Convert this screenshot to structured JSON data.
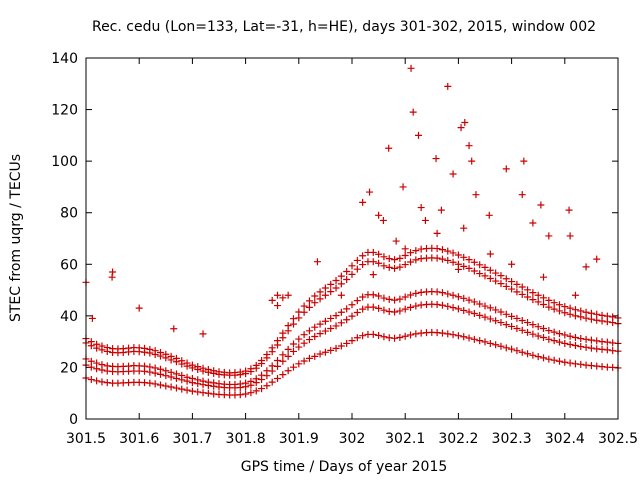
{
  "chart_data": {
    "type": "scatter",
    "title": "Rec. cedu (Lon=133, Lat=-31, h=HE), days 301-302, 2015, window 002",
    "xlabel": "GPS time / Days of year 2015",
    "ylabel": "STEC from uqrg / TECUs",
    "xlim": [
      301.5,
      302.5
    ],
    "ylim": [
      0,
      140
    ],
    "xticks": [
      "301.5",
      "301.6",
      "301.7",
      "301.8",
      "301.9",
      "302",
      "302.1",
      "302.2",
      "302.3",
      "302.4",
      "302.5"
    ],
    "yticks": [
      "0",
      "20",
      "40",
      "60",
      "80",
      "100",
      "120",
      "140"
    ],
    "marker": "+",
    "color": "#cc0000",
    "grid": false,
    "series": [
      {
        "name": "STEC",
        "x": [
          301.5,
          301.51,
          301.52,
          301.53,
          301.54,
          301.55,
          301.56,
          301.57,
          301.58,
          301.59,
          301.6,
          301.61,
          301.62,
          301.63,
          301.64,
          301.65,
          301.66,
          301.67,
          301.68,
          301.69,
          301.7,
          301.71,
          301.72,
          301.73,
          301.74,
          301.75,
          301.76,
          301.77,
          301.78,
          301.79,
          301.8,
          301.81,
          301.82,
          301.83,
          301.84,
          301.85,
          301.86,
          301.87,
          301.88,
          301.89,
          301.9,
          301.91,
          301.92,
          301.93,
          301.94,
          301.95,
          301.96,
          301.97,
          301.98,
          301.99,
          302.0,
          302.01,
          302.02,
          302.03,
          302.04,
          302.05,
          302.06,
          302.07,
          302.08,
          302.09,
          302.1,
          302.11,
          302.12,
          302.13,
          302.14,
          302.15,
          302.16,
          302.17,
          302.18,
          302.19,
          302.2,
          302.21,
          302.22,
          302.23,
          302.24,
          302.25,
          302.26,
          302.27,
          302.28,
          302.29,
          302.3,
          302.31,
          302.32,
          302.33,
          302.34,
          302.35,
          302.36,
          302.37,
          302.38,
          302.39,
          302.4,
          302.41,
          302.42,
          302.43,
          302.44,
          302.45,
          302.46,
          302.47,
          302.48,
          302.49,
          302.5,
          301.5,
          301.51,
          301.52,
          301.53,
          301.54,
          301.55,
          301.56,
          301.57,
          301.58,
          301.59,
          301.6,
          301.61,
          301.62,
          301.63,
          301.64,
          301.65,
          301.66,
          301.67,
          301.68,
          301.69,
          301.7,
          301.71,
          301.72,
          301.73,
          301.74,
          301.75,
          301.76,
          301.77,
          301.78,
          301.79,
          301.8,
          301.81,
          301.82,
          301.83,
          301.84,
          301.85,
          301.86,
          301.87,
          301.88,
          301.89,
          301.9,
          301.91,
          301.92,
          301.93,
          301.94,
          301.95,
          301.96,
          301.97,
          301.98,
          301.99,
          302.0,
          302.01,
          302.02,
          302.03,
          302.04,
          302.05,
          302.06,
          302.07,
          302.08,
          302.09,
          302.1,
          302.11,
          302.12,
          302.13,
          302.14,
          302.15,
          302.16,
          302.17,
          302.18,
          302.19,
          302.2,
          302.21,
          302.22,
          302.23,
          302.24,
          302.25,
          302.26,
          302.27,
          302.28,
          302.29,
          302.3,
          302.31,
          302.32,
          302.33,
          302.34,
          302.35,
          302.36,
          302.37,
          302.38,
          302.39,
          302.4,
          302.41,
          302.42,
          302.43,
          302.44,
          302.45,
          302.46,
          302.47,
          302.48,
          302.49,
          302.5,
          301.5,
          301.51,
          301.52,
          301.53,
          301.54,
          301.55,
          301.56,
          301.57,
          301.58,
          301.59,
          301.6,
          301.61,
          301.62,
          301.63,
          301.64,
          301.65,
          301.66,
          301.67,
          301.68,
          301.69,
          301.7,
          301.71,
          301.72,
          301.73,
          301.74,
          301.75,
          301.76,
          301.77,
          301.78,
          301.79,
          301.8,
          301.81,
          301.82,
          301.83,
          301.84,
          301.85,
          301.86,
          301.87,
          301.88,
          301.89,
          301.9,
          301.91,
          301.92,
          301.93,
          301.94,
          301.95,
          301.96,
          301.97,
          301.98,
          301.99,
          302.0,
          302.01,
          302.02,
          302.03,
          302.04,
          302.05,
          302.06,
          302.07,
          302.08,
          302.09,
          302.1,
          302.11,
          302.12,
          302.13,
          302.14,
          302.15,
          302.16,
          302.17,
          302.18,
          302.19,
          302.2,
          302.21,
          302.22,
          302.23,
          302.24,
          302.25,
          302.26,
          302.27,
          302.28,
          302.29,
          302.3,
          302.31,
          302.32,
          302.33,
          302.34,
          302.35,
          302.36,
          302.37,
          302.38,
          302.39,
          302.4,
          302.41,
          302.42,
          302.43,
          302.44,
          302.45,
          302.46,
          302.47,
          302.48,
          302.49,
          302.5,
          301.5,
          301.51,
          301.52,
          301.53,
          301.54,
          301.55,
          301.56,
          301.57,
          301.58,
          301.59,
          301.6,
          301.61,
          301.62,
          301.63,
          301.64,
          301.65,
          301.66,
          301.67,
          301.68,
          301.69,
          301.7,
          301.71,
          301.72,
          301.73,
          301.74,
          301.75,
          301.76,
          301.77,
          301.78,
          301.79,
          301.8,
          301.81,
          301.82,
          301.83,
          301.84,
          301.85,
          301.86,
          301.87,
          301.88,
          301.89,
          301.9,
          301.91,
          301.92,
          301.93,
          301.94,
          301.95,
          301.96,
          301.97,
          301.98,
          301.99,
          302.0,
          302.01,
          302.02,
          302.03,
          302.04,
          302.05,
          302.06,
          302.07,
          302.08,
          302.09,
          302.1,
          302.11,
          302.12,
          302.13,
          302.14,
          302.15,
          302.16,
          302.17,
          302.18,
          302.19,
          302.2,
          302.21,
          302.22,
          302.23,
          302.24,
          302.25,
          302.26,
          302.27,
          302.28,
          302.29,
          302.3,
          302.31,
          302.32,
          302.33,
          302.34,
          302.35,
          302.36,
          302.37,
          302.38,
          302.39,
          302.4,
          302.41,
          302.42,
          302.43,
          302.44,
          302.45,
          302.46,
          302.47,
          302.48,
          302.49,
          302.5,
          301.5,
          301.51,
          301.52,
          301.53,
          301.54,
          301.55,
          301.56,
          301.57,
          301.58,
          301.59,
          301.6,
          301.61,
          301.62,
          301.63,
          301.64,
          301.65,
          301.66,
          301.67,
          301.68,
          301.69,
          301.7,
          301.71,
          301.72,
          301.73,
          301.74,
          301.75,
          301.76,
          301.77,
          301.78,
          301.79,
          301.8,
          301.81,
          301.82,
          301.83,
          301.84,
          301.85,
          301.86,
          301.87,
          301.88,
          301.89,
          301.9,
          301.91,
          301.92,
          301.93,
          301.94,
          301.95,
          301.96,
          301.97,
          301.98,
          301.99,
          302.0,
          302.01,
          302.02,
          302.03,
          302.04,
          302.05,
          302.06,
          302.07,
          302.08,
          302.09,
          302.1,
          302.11,
          302.12,
          302.13,
          302.14,
          302.15,
          302.16,
          302.17,
          302.18,
          302.19,
          302.2,
          302.21,
          302.22,
          302.23,
          302.24,
          302.25,
          302.26,
          302.27,
          302.28,
          302.29,
          302.3,
          302.31,
          302.32,
          302.33,
          302.34,
          302.35,
          302.36,
          302.37,
          302.38,
          302.39,
          302.4,
          302.41,
          302.42,
          302.43,
          302.44,
          302.45,
          302.46,
          302.47,
          302.48,
          302.49,
          302.5,
          301.5,
          301.55,
          301.549,
          301.512,
          301.6,
          301.665,
          301.72,
          301.85,
          301.86,
          301.86,
          301.87,
          301.88,
          301.935,
          301.98,
          302.02,
          302.033,
          302.05,
          302.059,
          302.069,
          302.083,
          302.096,
          302.111,
          302.115,
          302.125,
          302.13,
          302.138,
          302.158,
          302.168,
          302.18,
          302.19,
          302.205,
          302.21,
          302.212,
          302.22,
          302.225,
          302.233,
          302.258,
          302.29,
          302.32,
          302.323,
          302.34,
          302.355,
          302.37,
          302.408,
          302.41,
          302.44,
          302.46,
          302.04,
          302.1,
          302.16,
          302.2,
          302.26,
          302.3,
          302.36,
          302.42
        ],
        "y": [
          15.9,
          15.3,
          14.8,
          14.4,
          14.1,
          13.9,
          13.9,
          14.0,
          14.1,
          14.2,
          14.2,
          14.1,
          13.9,
          13.6,
          13.2,
          12.8,
          12.4,
          12.0,
          11.6,
          11.2,
          10.8,
          10.5,
          10.2,
          10.0,
          9.7,
          9.5,
          9.4,
          9.3,
          9.3,
          9.4,
          9.7,
          10.2,
          10.9,
          11.8,
          12.9,
          14.3,
          15.7,
          17.2,
          18.7,
          20.1,
          21.4,
          22.5,
          23.5,
          24.3,
          25.2,
          25.9,
          26.6,
          27.4,
          28.3,
          29.3,
          30.4,
          31.5,
          32.3,
          32.8,
          32.8,
          32.4,
          31.9,
          31.5,
          31.3,
          31.6,
          32.1,
          32.6,
          33.0,
          33.3,
          33.5,
          33.6,
          33.5,
          33.3,
          33.0,
          32.7,
          32.3,
          31.9,
          31.4,
          30.9,
          30.4,
          29.9,
          29.3,
          28.8,
          28.2,
          27.6,
          27.1,
          26.5,
          25.9,
          25.3,
          24.7,
          24.2,
          23.7,
          23.2,
          22.8,
          22.4,
          22.0,
          21.7,
          21.4,
          21.2,
          20.9,
          20.7,
          20.5,
          20.3,
          20.1,
          20.0,
          19.8,
          20.9,
          20.1,
          19.5,
          19.0,
          18.6,
          18.4,
          18.3,
          18.4,
          18.5,
          18.6,
          18.6,
          18.5,
          18.2,
          17.8,
          17.3,
          16.8,
          16.3,
          15.7,
          15.2,
          14.7,
          14.1,
          13.7,
          13.3,
          13.0,
          12.7,
          12.4,
          12.2,
          12.1,
          12.1,
          12.2,
          12.5,
          13.1,
          14.1,
          15.3,
          16.8,
          18.6,
          20.4,
          22.4,
          24.3,
          26.2,
          27.9,
          29.4,
          30.8,
          32.0,
          33.1,
          34.1,
          35.1,
          36.1,
          37.3,
          38.5,
          39.9,
          41.3,
          42.6,
          43.4,
          43.4,
          42.9,
          42.2,
          41.7,
          41.5,
          41.9,
          42.6,
          43.3,
          43.8,
          44.2,
          44.4,
          44.5,
          44.4,
          44.1,
          43.7,
          43.2,
          42.7,
          42.1,
          41.5,
          40.9,
          40.2,
          39.5,
          38.8,
          38.1,
          37.4,
          36.6,
          35.9,
          35.1,
          34.4,
          33.6,
          32.9,
          32.2,
          31.6,
          30.9,
          30.4,
          29.8,
          29.3,
          28.9,
          28.5,
          28.1,
          27.8,
          27.5,
          27.2,
          27.0,
          26.8,
          26.5,
          26.3,
          23.3,
          22.4,
          21.7,
          21.1,
          20.6,
          20.4,
          20.3,
          20.4,
          20.5,
          20.7,
          20.6,
          20.5,
          20.2,
          19.8,
          19.3,
          18.7,
          18.1,
          17.5,
          16.9,
          16.2,
          15.7,
          15.2,
          14.7,
          14.3,
          14.0,
          13.7,
          13.5,
          13.4,
          13.4,
          13.6,
          13.9,
          14.6,
          15.6,
          17.0,
          18.7,
          20.6,
          22.7,
          24.9,
          27.0,
          29.1,
          31.0,
          32.7,
          34.2,
          35.6,
          36.8,
          37.9,
          39.0,
          40.1,
          41.4,
          42.7,
          44.3,
          45.9,
          47.3,
          48.2,
          48.2,
          47.7,
          46.9,
          46.4,
          46.1,
          46.5,
          47.3,
          48.1,
          48.7,
          49.1,
          49.3,
          49.4,
          49.3,
          49.0,
          48.5,
          48.0,
          47.4,
          46.8,
          46.1,
          45.4,
          44.6,
          43.8,
          43.1,
          42.3,
          41.5,
          40.6,
          39.8,
          39.0,
          38.2,
          37.4,
          36.6,
          35.8,
          35.1,
          34.3,
          33.7,
          33.1,
          32.6,
          32.1,
          31.6,
          31.2,
          30.9,
          30.6,
          30.3,
          30.0,
          29.8,
          29.5,
          29.3,
          29.5,
          28.4,
          27.5,
          26.8,
          26.2,
          25.8,
          25.7,
          25.8,
          26.0,
          26.2,
          26.1,
          25.9,
          25.6,
          25.0,
          24.4,
          23.7,
          22.9,
          22.2,
          21.3,
          20.5,
          19.8,
          19.2,
          18.6,
          18.1,
          17.7,
          17.3,
          17.1,
          17.0,
          17.0,
          17.2,
          17.6,
          18.4,
          19.7,
          21.5,
          23.7,
          26.1,
          28.7,
          31.5,
          34.2,
          36.8,
          39.2,
          41.4,
          43.3,
          45.1,
          46.6,
          48.0,
          49.4,
          50.8,
          52.4,
          54.1,
          56.1,
          58.1,
          59.9,
          61.0,
          61.0,
          60.4,
          59.4,
          58.8,
          58.4,
          58.9,
          59.9,
          60.9,
          61.7,
          62.2,
          62.4,
          62.5,
          62.4,
          62.0,
          61.5,
          60.8,
          60.0,
          59.2,
          58.4,
          57.4,
          56.4,
          55.5,
          54.5,
          53.5,
          52.5,
          51.4,
          50.4,
          49.3,
          48.3,
          47.3,
          46.3,
          45.4,
          44.4,
          43.4,
          42.6,
          41.9,
          41.2,
          40.6,
          40.0,
          39.6,
          39.1,
          38.7,
          38.3,
          38.0,
          37.7,
          37.4,
          37.0,
          31.2,
          30.0,
          29.0,
          28.3,
          27.7,
          27.3,
          27.2,
          27.3,
          27.5,
          27.7,
          27.6,
          27.4,
          27.0,
          26.5,
          25.8,
          25.1,
          24.3,
          23.5,
          22.6,
          21.7,
          20.9,
          20.3,
          19.7,
          19.2,
          18.7,
          18.3,
          18.1,
          17.9,
          18.0,
          18.2,
          18.6,
          19.5,
          20.8,
          22.7,
          25.0,
          27.6,
          30.4,
          33.3,
          36.2,
          38.9,
          41.5,
          43.8,
          45.8,
          47.7,
          49.3,
          50.8,
          52.2,
          53.7,
          55.4,
          57.2,
          59.4,
          61.5,
          63.3,
          64.6,
          64.6,
          63.9,
          62.9,
          62.2,
          61.8,
          62.3,
          63.4,
          64.5,
          65.3,
          65.9,
          66.1,
          66.2,
          66.1,
          65.7,
          65.1,
          64.4,
          63.6,
          62.7,
          61.8,
          60.8,
          59.8,
          58.8,
          57.7,
          56.6,
          55.6,
          54.4,
          53.3,
          52.2,
          51.2,
          50.1,
          49.0,
          48.0,
          47.0,
          46.0,
          45.1,
          44.3,
          43.6,
          43.0,
          42.4,
          41.9,
          41.4,
          41.0,
          40.6,
          40.2,
          39.9,
          39.6,
          39.2,
          53.0,
          57.0,
          55.0,
          39.0,
          43.0,
          35.0,
          33.0,
          46.0,
          48.0,
          44.0,
          47.0,
          48.0,
          61.0,
          48.0,
          84.0,
          88.0,
          79.0,
          77.0,
          105.0,
          69.0,
          90.0,
          136.0,
          119.0,
          110.0,
          82.0,
          77.0,
          101.0,
          81.0,
          129.0,
          95.0,
          113.0,
          74.0,
          115.0,
          106.0,
          100.0,
          87.0,
          79.0,
          97.0,
          87.0,
          100.0,
          76.0,
          83.0,
          71.0,
          81.0,
          71.0,
          59.0,
          62.0,
          56.0,
          66.0,
          72.0,
          58.0,
          64.0,
          60.0,
          55.0,
          48.0
        ]
      }
    ]
  }
}
